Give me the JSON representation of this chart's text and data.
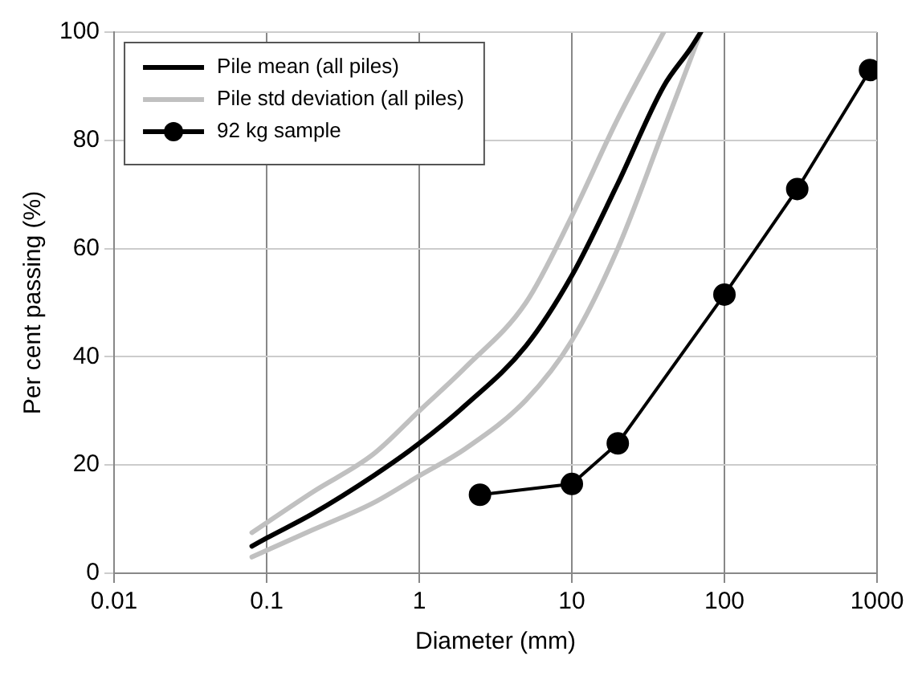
{
  "chart_data": {
    "type": "line",
    "xlabel": "Diameter (mm)",
    "ylabel": "Per cent passing (%)",
    "log": "x",
    "xlim": [
      0.01,
      1000
    ],
    "xticks": [
      0.01,
      0.1,
      1,
      10,
      100,
      1000
    ],
    "ylim": [
      0,
      100
    ],
    "yticks": [
      0,
      20,
      40,
      60,
      80,
      100
    ],
    "grid": true,
    "legend": "top left",
    "series": [
      {
        "name": "Pile mean (all piles)",
        "color": "#000000",
        "marker": "none",
        "x": [
          0.08,
          0.1,
          0.2,
          0.5,
          1,
          2,
          5,
          10,
          20,
          40,
          60,
          70
        ],
        "values": [
          5,
          6.5,
          11,
          18,
          24,
          31,
          42,
          55,
          72,
          90,
          97,
          100
        ]
      },
      {
        "name": "Pile std deviation (all piles)",
        "color": "#c0c0c0",
        "marker": "none",
        "x": [
          0.08,
          0.2,
          0.5,
          1,
          2,
          5,
          10,
          20,
          40
        ],
        "values": [
          7.5,
          15,
          22,
          30,
          38,
          50,
          66,
          84,
          100
        ]
      },
      {
        "color": "#c0c0c0",
        "marker": "none",
        "x": [
          0.08,
          0.2,
          0.5,
          1,
          2,
          5,
          10,
          20,
          40,
          70
        ],
        "values": [
          3,
          8,
          13,
          18,
          23,
          32,
          43,
          60,
          82,
          100
        ]
      },
      {
        "name": "92 kg sample",
        "color": "#000000",
        "marker": "circle",
        "x": [
          2.5,
          10,
          20,
          100,
          300,
          900
        ],
        "values": [
          14.5,
          16.5,
          24,
          51.5,
          71,
          93
        ]
      }
    ]
  }
}
